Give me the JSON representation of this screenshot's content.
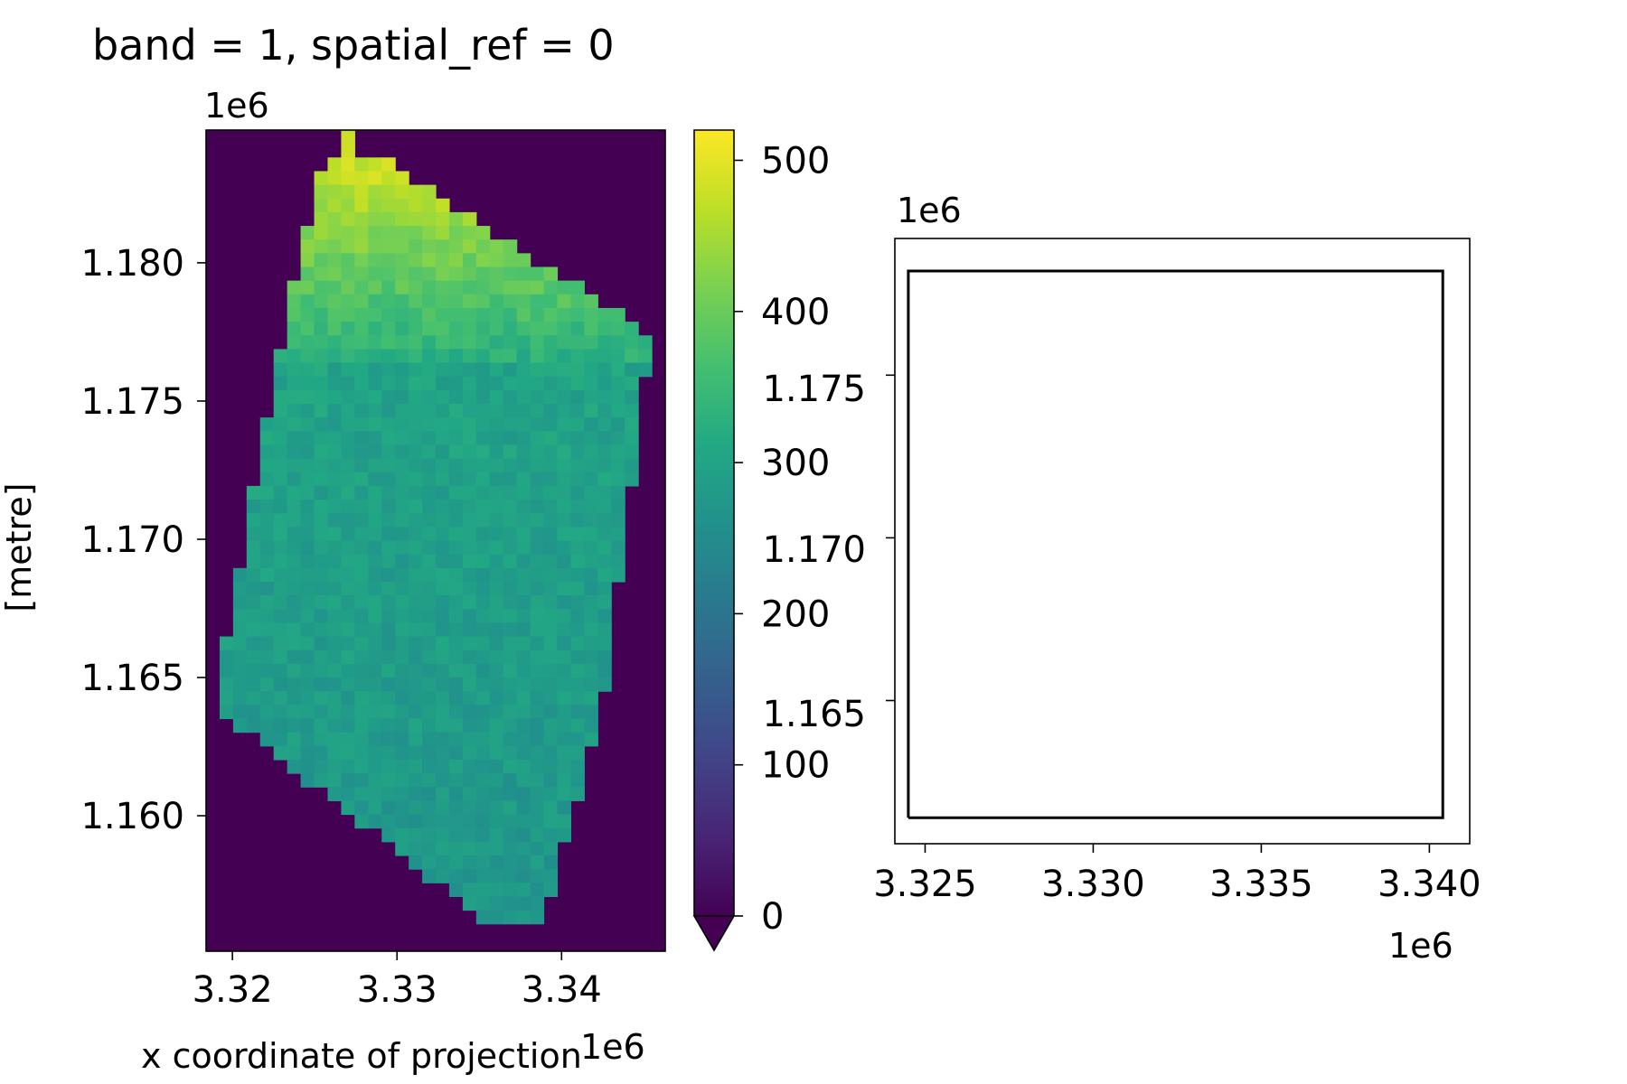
{
  "chart_data": [
    {
      "type": "heatmap",
      "title": "band = 1, spatial_ref = 0",
      "xlabel": "x coordinate of projection",
      "ylabel": "[metre]",
      "x_offset_text": "1e6",
      "y_offset_text": "1e6",
      "xlim": [
        3.3184,
        3.3463
      ],
      "ylim": [
        1.1551,
        1.1848
      ],
      "x_ticks": [
        3.32,
        3.33,
        3.34
      ],
      "x_tick_labels": [
        "3.32",
        "3.33",
        "3.34"
      ],
      "y_ticks": [
        1.16,
        1.165,
        1.17,
        1.175,
        1.18
      ],
      "y_tick_labels": [
        "1.160",
        "1.165",
        "1.170",
        "1.175",
        "1.180"
      ],
      "grid": false,
      "colormap": "viridis",
      "background_value": 0,
      "mask_rows_note": "rows from top; each row lists [start_col, end_col) of valid cells on a 34 x 60 grid",
      "grid_cols": 34,
      "grid_rows": 60,
      "colorbar": {
        "vmin": 0,
        "vmax": 520,
        "extend": "min",
        "ticks": [
          0,
          100,
          200,
          300,
          400,
          500
        ],
        "tick_labels": [
          "0",
          "100",
          "200",
          "300",
          "400",
          "500"
        ]
      },
      "overlay_ticks": {
        "y_ticks": [
          1.165,
          1.17,
          1.175
        ],
        "y_tick_labels": [
          "1.165",
          "1.170",
          "1.175"
        ]
      }
    },
    {
      "type": "line",
      "title": "",
      "xlim": [
        3.3241,
        3.3412
      ],
      "ylim": [
        1.1606,
        1.1792
      ],
      "x_ticks": [
        3.325,
        3.33,
        3.335,
        3.34
      ],
      "x_tick_labels": [
        "3.325",
        "3.330",
        "3.335",
        "3.340"
      ],
      "y_ticks": [
        1.165,
        1.17,
        1.175
      ],
      "y_tick_labels": [
        "1.165",
        "1.170",
        "1.175"
      ],
      "x_offset_text": "1e6",
      "y_offset_text": "1e6",
      "grid": false,
      "series": [
        {
          "x": [
            3.3245,
            3.3404,
            3.3404,
            3.3245,
            3.3245
          ],
          "y": [
            1.1614,
            1.1614,
            1.1782,
            1.1782,
            1.1614
          ],
          "color": "#000000"
        }
      ]
    }
  ]
}
